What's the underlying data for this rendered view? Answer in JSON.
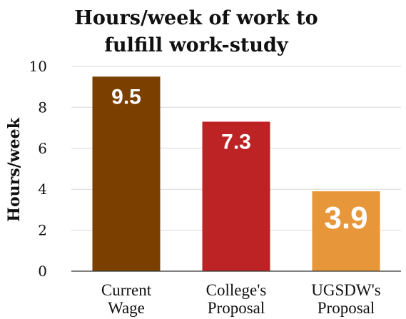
{
  "chart_data": {
    "type": "bar",
    "title_lines": [
      "Hours/week of work to",
      "fulfill work-study"
    ],
    "ylabel": "Hours/week",
    "xlabel": "",
    "ylim": [
      0,
      10
    ],
    "yticks": [
      "0",
      "2",
      "4",
      "6",
      "8",
      "10"
    ],
    "grid": true,
    "categories": [
      [
        "Current",
        "Wage"
      ],
      [
        "College's",
        "Proposal"
      ],
      [
        "UGSDW's",
        "Proposal"
      ]
    ],
    "values": [
      9.5,
      7.3,
      3.9
    ],
    "data_labels": [
      "9.5",
      "7.3",
      "3.9"
    ],
    "colors": [
      "#7b3f00",
      "#bd2325",
      "#e8963a"
    ]
  }
}
